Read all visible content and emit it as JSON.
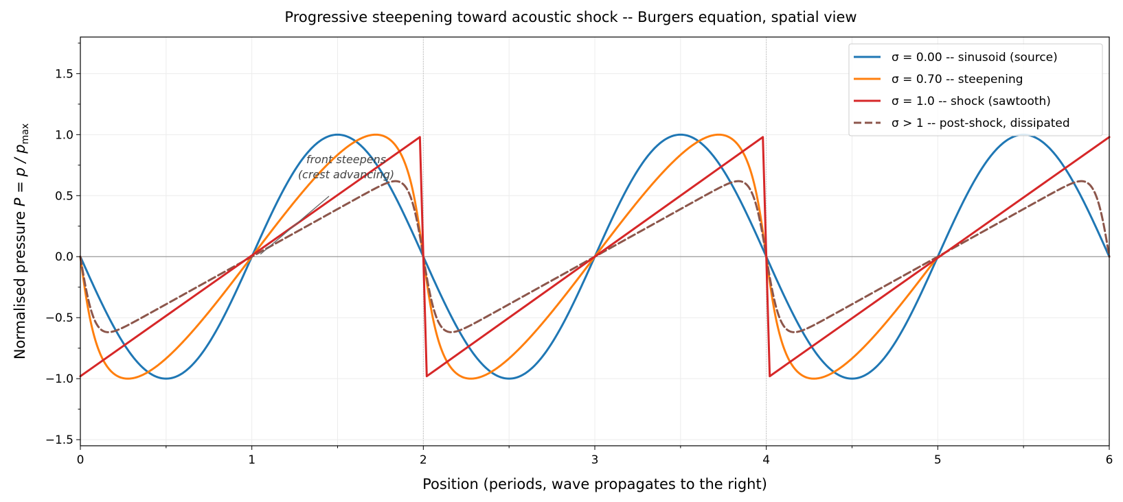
{
  "chart_data": {
    "type": "line",
    "title": "Progressive steepening toward acoustic shock -- Burgers equation, spatial view",
    "xlabel": "Position  (periods, wave propagates to the right)",
    "ylabel_prefix": "Normalised pressure  ",
    "ylabel_math": "P = p / p",
    "ylabel_sub": "max",
    "xlim": [
      0,
      6
    ],
    "ylim": [
      -1.55,
      1.8
    ],
    "xticks": [
      0,
      1,
      2,
      3,
      4,
      5,
      6
    ],
    "xtick_labels": [
      "0",
      "1",
      "2",
      "3",
      "4",
      "5",
      "6"
    ],
    "yticks": [
      -1.5,
      -1.0,
      -0.5,
      0.0,
      0.5,
      1.0,
      1.5
    ],
    "ytick_labels": [
      "−1.5",
      "−1.0",
      "−0.5",
      "0.0",
      "0.5",
      "1.0",
      "1.5"
    ],
    "grid": true,
    "legend_position": "top-right",
    "series": [
      {
        "name": "σ = 0.00 -- sinusoid (source)",
        "color": "#1f77b4",
        "dash": "solid",
        "x": [
          0,
          0.25,
          0.5,
          0.75,
          1,
          1.25,
          1.5,
          1.75,
          2,
          2.25,
          2.5,
          2.75,
          3,
          3.25,
          3.5,
          3.75,
          4,
          4.25,
          4.5,
          4.75,
          5,
          5.25,
          5.5,
          5.75,
          6
        ],
        "y": [
          0,
          -0.71,
          -1,
          -0.71,
          0,
          0.71,
          1,
          0.71,
          0,
          -0.71,
          -1,
          -0.71,
          0,
          0.71,
          1,
          0.71,
          0,
          -0.71,
          -1,
          -0.71,
          0,
          0.71,
          1,
          0.71,
          0
        ]
      },
      {
        "name": "σ = 0.70 -- steepening",
        "color": "#ff7f0e",
        "dash": "solid",
        "x": [
          0,
          0.1,
          0.27,
          0.5,
          0.75,
          1,
          1.25,
          1.5,
          1.73,
          1.9,
          2,
          2.1,
          2.27,
          2.5,
          2.75,
          3,
          3.25,
          3.5,
          3.73,
          3.9,
          4,
          4.1,
          4.27,
          4.5,
          4.75,
          5,
          5.25,
          5.5,
          5.73,
          5.9,
          6
        ],
        "y": [
          0,
          -0.82,
          -1,
          -0.84,
          -0.46,
          0,
          0.46,
          0.84,
          1,
          0.82,
          0,
          -0.82,
          -1,
          -0.84,
          -0.46,
          0,
          0.46,
          0.84,
          1,
          0.82,
          0,
          -0.82,
          -1,
          -0.84,
          -0.46,
          0,
          0.46,
          0.84,
          1,
          0.82,
          0
        ]
      },
      {
        "name": "σ = 1.0 -- shock (sawtooth)",
        "color": "#d62728",
        "dash": "solid",
        "x": [
          0,
          1.98,
          2.02,
          3.98,
          4.02,
          6
        ],
        "y": [
          -0.98,
          0.98,
          -0.98,
          0.98,
          -0.98,
          0.98
        ]
      },
      {
        "name": "σ > 1 -- post-shock, dissipated",
        "color": "#8c564b",
        "dash": "dashed",
        "x": [
          0,
          0.05,
          0.1,
          0.15,
          0.2,
          0.3,
          1,
          1.7,
          1.8,
          1.85,
          1.9,
          1.95,
          2,
          2.05,
          2.1,
          2.15,
          2.2,
          2.3,
          3,
          3.7,
          3.8,
          3.85,
          3.9,
          3.95,
          4,
          4.05,
          4.1,
          4.15,
          4.2,
          4.3,
          5,
          5.7,
          5.8,
          5.85,
          5.9,
          5.95,
          6
        ],
        "y": [
          0,
          -0.45,
          -0.68,
          -0.76,
          -0.78,
          -0.7,
          0,
          0.7,
          0.78,
          0.76,
          0.68,
          0.45,
          0,
          -0.45,
          -0.68,
          -0.76,
          -0.78,
          -0.7,
          0,
          0.7,
          0.78,
          0.76,
          0.68,
          0.45,
          0,
          -0.45,
          -0.68,
          -0.76,
          -0.78,
          -0.7,
          0,
          0.7,
          0.78,
          0.76,
          0.68,
          0.45,
          0
        ]
      }
    ],
    "reference_lines": {
      "horizontal_y": 0,
      "vertical_x": [
        2,
        4
      ]
    },
    "annotation": {
      "lines": [
        "front steepens",
        "(crest advancing)"
      ],
      "text_at": [
        1.55,
        0.72
      ],
      "arrow_to": [
        1.05,
        0.02
      ]
    }
  }
}
